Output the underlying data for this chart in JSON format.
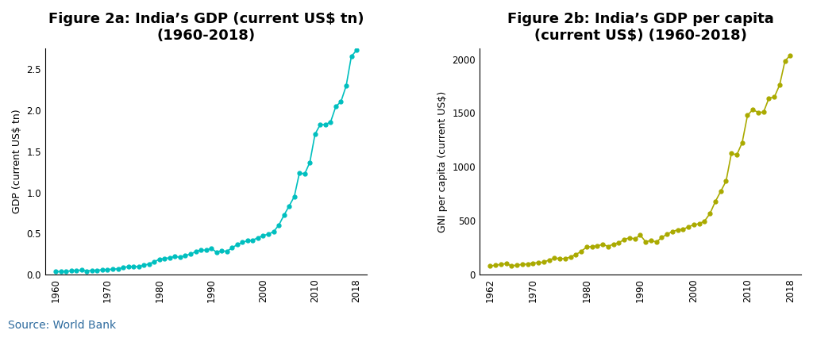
{
  "title_a": "Figure 2a: India’s GDP (current US$ tn)\n(1960-2018)",
  "title_b": "Figure 2b: India’s GDP per capita\n(current US$) (1960-2018)",
  "ylabel_a": "GDP (current US$ tn)",
  "ylabel_b": "GNI per capita (current US$)",
  "source": "Source: World Bank",
  "color_a": "#00BFBF",
  "color_b": "#AAAA00",
  "gdp_years": [
    1960,
    1961,
    1962,
    1963,
    1964,
    1965,
    1966,
    1967,
    1968,
    1969,
    1970,
    1971,
    1972,
    1973,
    1974,
    1975,
    1976,
    1977,
    1978,
    1979,
    1980,
    1981,
    1982,
    1983,
    1984,
    1985,
    1986,
    1987,
    1988,
    1989,
    1990,
    1991,
    1992,
    1993,
    1994,
    1995,
    1996,
    1997,
    1998,
    1999,
    2000,
    2001,
    2002,
    2003,
    2004,
    2005,
    2006,
    2007,
    2008,
    2009,
    2010,
    2011,
    2012,
    2013,
    2014,
    2015,
    2016,
    2017,
    2018
  ],
  "gdp_values": [
    0.0376,
    0.0396,
    0.0427,
    0.0469,
    0.0525,
    0.0573,
    0.0464,
    0.0521,
    0.0554,
    0.06,
    0.0636,
    0.0683,
    0.0726,
    0.0873,
    0.0995,
    0.0998,
    0.1006,
    0.1144,
    0.133,
    0.1574,
    0.1895,
    0.1966,
    0.2076,
    0.2215,
    0.2124,
    0.2355,
    0.2491,
    0.2826,
    0.2999,
    0.2982,
    0.3207,
    0.2745,
    0.2912,
    0.2838,
    0.3272,
    0.3663,
    0.3934,
    0.4138,
    0.4213,
    0.4502,
    0.4765,
    0.4937,
    0.5239,
    0.601,
    0.7217,
    0.8346,
    0.9491,
    1.2387,
    1.2243,
    1.3659,
    1.7082,
    1.8234,
    1.8241,
    1.8563,
    2.0422,
    2.1034,
    2.2944,
    2.6522,
    2.7263
  ],
  "gdp_pc_years": [
    1962,
    1963,
    1964,
    1965,
    1966,
    1967,
    1968,
    1969,
    1970,
    1971,
    1972,
    1973,
    1974,
    1975,
    1976,
    1977,
    1978,
    1979,
    1980,
    1981,
    1982,
    1983,
    1984,
    1985,
    1986,
    1987,
    1988,
    1989,
    1990,
    1991,
    1992,
    1993,
    1994,
    1995,
    1996,
    1997,
    1998,
    1999,
    2000,
    2001,
    2002,
    2003,
    2004,
    2005,
    2006,
    2007,
    2008,
    2009,
    2010,
    2011,
    2012,
    2013,
    2014,
    2015,
    2016,
    2017,
    2018
  ],
  "gdp_pc_values": [
    82,
    88,
    97,
    103,
    82,
    91,
    95,
    101,
    108,
    113,
    117,
    138,
    154,
    151,
    149,
    166,
    188,
    218,
    258,
    261,
    269,
    281,
    263,
    285,
    296,
    329,
    342,
    333,
    368,
    306,
    318,
    304,
    345,
    378,
    400,
    418,
    420,
    447,
    463,
    474,
    499,
    568,
    679,
    773,
    868,
    1126,
    1112,
    1224,
    1478,
    1533,
    1504,
    1509,
    1638,
    1647,
    1761,
    1984,
    2036
  ],
  "background_color": "#ffffff",
  "title_fontsize": 13,
  "axis_label_fontsize": 9,
  "tick_fontsize": 8.5,
  "source_fontsize": 10,
  "marker_size": 3.5,
  "line_width": 1.2
}
